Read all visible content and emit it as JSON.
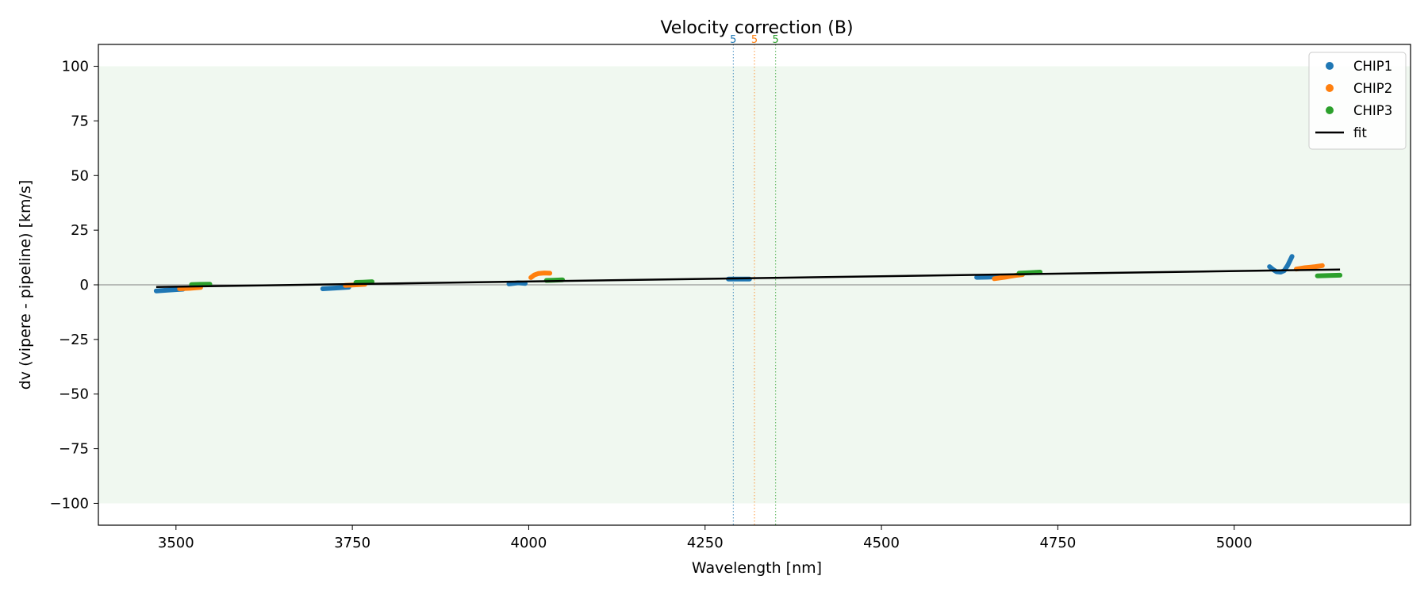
{
  "chart_data": {
    "type": "scatter",
    "title": "Velocity correction (B)",
    "xlabel": "Wavelength [nm]",
    "ylabel": "dv (vipere - pipeline) [km/s]",
    "xlim": [
      3390,
      5250
    ],
    "ylim": [
      -110,
      110
    ],
    "xticks": [
      3500,
      3750,
      4000,
      4250,
      4500,
      4750,
      5000
    ],
    "yticks": [
      -100,
      -75,
      -50,
      -25,
      0,
      25,
      50,
      75,
      100
    ],
    "shaded_band": [
      -100,
      100
    ],
    "zero_line": 0,
    "legend_position": "top-right",
    "colors": {
      "CHIP1": "#1f77b4",
      "CHIP2": "#ff7f0e",
      "CHIP3": "#2ca02c",
      "fit": "#000000",
      "band": "#2ca02c"
    },
    "series": [
      {
        "name": "CHIP1",
        "segments": [
          [
            [
              3472,
              -2.8
            ],
            [
              3490,
              -2.4
            ],
            [
              3510,
              -2.0
            ]
          ],
          [
            [
              3708,
              -1.8
            ],
            [
              3725,
              -1.5
            ],
            [
              3745,
              -1.1
            ]
          ],
          [
            [
              3972,
              0.4
            ],
            [
              3985,
              0.9
            ],
            [
              3995,
              0.6
            ]
          ],
          [
            [
              4283,
              2.6
            ],
            [
              4295,
              2.6
            ],
            [
              4313,
              2.6
            ]
          ],
          [
            [
              4635,
              3.4
            ],
            [
              4650,
              3.5
            ],
            [
              4665,
              3.7
            ]
          ],
          [
            [
              5050,
              8.3
            ],
            [
              5055,
              7.0
            ],
            [
              5060,
              6.0
            ],
            [
              5066,
              5.8
            ],
            [
              5071,
              6.5
            ],
            [
              5076,
              9.0
            ],
            [
              5082,
              13.0
            ]
          ]
        ]
      },
      {
        "name": "CHIP2",
        "segments": [
          [
            [
              3505,
              -1.8
            ],
            [
              3520,
              -1.6
            ],
            [
              3535,
              -1.2
            ]
          ],
          [
            [
              3740,
              -0.3
            ],
            [
              3755,
              0.0
            ],
            [
              3768,
              0.2
            ]
          ],
          [
            [
              4003,
              3.3
            ],
            [
              4008,
              4.5
            ],
            [
              4014,
              5.2
            ],
            [
              4022,
              5.4
            ],
            [
              4030,
              5.3
            ]
          ],
          [
            [
              4660,
              2.8
            ],
            [
              4675,
              3.5
            ],
            [
              4690,
              4.3
            ],
            [
              4700,
              4.7
            ]
          ],
          [
            [
              5088,
              7.2
            ],
            [
              5100,
              7.8
            ],
            [
              5115,
              8.3
            ],
            [
              5125,
              8.8
            ]
          ]
        ]
      },
      {
        "name": "CHIP3",
        "segments": [
          [
            [
              3522,
              0.1
            ],
            [
              3535,
              0.2
            ],
            [
              3548,
              0.3
            ]
          ],
          [
            [
              3755,
              1.1
            ],
            [
              3765,
              1.2
            ],
            [
              3778,
              1.4
            ]
          ],
          [
            [
              4025,
              2.0
            ],
            [
              4035,
              2.1
            ],
            [
              4048,
              2.3
            ]
          ],
          [
            [
              4695,
              5.3
            ],
            [
              4710,
              5.5
            ],
            [
              4725,
              5.8
            ]
          ],
          [
            [
              5118,
              4.1
            ],
            [
              5135,
              4.3
            ],
            [
              5150,
              4.4
            ]
          ]
        ]
      },
      {
        "name": "fit",
        "line": [
          [
            3472,
            -1.0
          ],
          [
            5150,
            7.0
          ]
        ]
      }
    ],
    "order_markers": [
      {
        "x": 4290,
        "label": "5",
        "color": "#1f77b4"
      },
      {
        "x": 4320,
        "label": "5",
        "color": "#ff7f0e"
      },
      {
        "x": 4350,
        "label": "5",
        "color": "#2ca02c"
      }
    ],
    "legend": [
      {
        "label": "CHIP1",
        "kind": "marker",
        "color": "#1f77b4"
      },
      {
        "label": "CHIP2",
        "kind": "marker",
        "color": "#ff7f0e"
      },
      {
        "label": "CHIP3",
        "kind": "marker",
        "color": "#2ca02c"
      },
      {
        "label": "fit",
        "kind": "line",
        "color": "#000000"
      }
    ]
  }
}
